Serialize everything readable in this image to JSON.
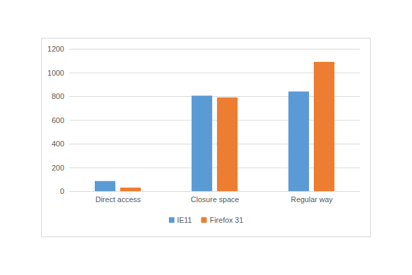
{
  "chart_data": {
    "type": "bar",
    "categories": [
      "Direct access",
      "Closure space",
      "Regular way"
    ],
    "series": [
      {
        "name": "IE11",
        "color": "#5b9bd5",
        "values": [
          85,
          805,
          840
        ]
      },
      {
        "name": "Firefox 31",
        "color": "#ed7d31",
        "values": [
          30,
          790,
          1090
        ]
      }
    ],
    "ylim": [
      0,
      1200
    ],
    "yticks": [
      0,
      200,
      400,
      600,
      800,
      1000,
      1200
    ],
    "grid": true,
    "legend": "bottom"
  }
}
